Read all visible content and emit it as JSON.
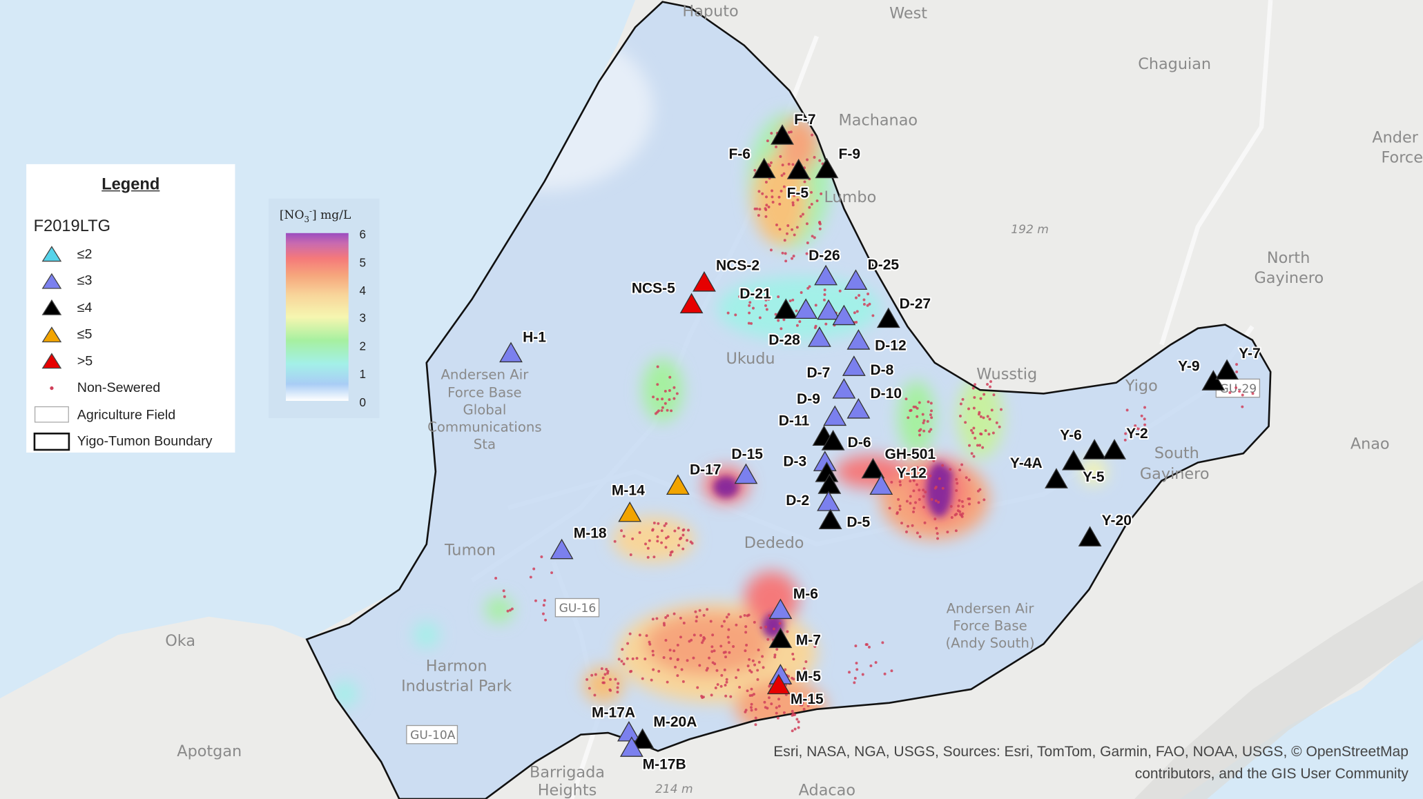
{
  "legend": {
    "title": "Legend",
    "layer": "F2019LTG",
    "items": [
      {
        "label": "≤2",
        "symbol": "triangle",
        "color": "#55d3ea"
      },
      {
        "label": "≤3",
        "symbol": "triangle",
        "color": "#7b80ee"
      },
      {
        "label": "≤4",
        "symbol": "triangle",
        "color": "#000000"
      },
      {
        "label": "≤5",
        "symbol": "triangle",
        "color": "#f2a400"
      },
      {
        "label": ">5",
        "symbol": "triangle",
        "color": "#e60000"
      },
      {
        "label": "Non-Sewered",
        "symbol": "dot",
        "color": "#d0405a"
      },
      {
        "label": "Agriculture Field",
        "symbol": "box-gray"
      },
      {
        "label": "Yigo-Tumon Boundary",
        "symbol": "box-black"
      }
    ]
  },
  "colorbar": {
    "title_prefix": "[NO",
    "title_sub": "3",
    "title_sup": "-",
    "title_suffix": "] mg/L",
    "ticks": [
      "6",
      "5",
      "4",
      "3",
      "2",
      "1",
      "0"
    ],
    "range": [
      0,
      6
    ],
    "colors": [
      "#ffffff",
      "#a9cdf5",
      "#a3f0e8",
      "#a6f0a0",
      "#f6f6b0",
      "#f8d59a",
      "#f6a57c",
      "#f5797a",
      "#9b4cc0"
    ]
  },
  "wells": [
    {
      "label": "F-7",
      "class": "≤4"
    },
    {
      "label": "F-6",
      "class": "≤4"
    },
    {
      "label": "F-5",
      "class": "≤4"
    },
    {
      "label": "F-9",
      "class": "≤4"
    },
    {
      "label": "NCS-2",
      "class": ">5"
    },
    {
      "label": "NCS-5",
      "class": ">5"
    },
    {
      "label": "D-21",
      "class": "≤4"
    },
    {
      "label": "D-26",
      "class": "≤3"
    },
    {
      "label": "D-25",
      "class": "≤3"
    },
    {
      "label": "",
      "class": "≤3"
    },
    {
      "label": "",
      "class": "≤3"
    },
    {
      "label": "",
      "class": "≤3"
    },
    {
      "label": "D-27",
      "class": "≤4"
    },
    {
      "label": "D-28",
      "class": "≤3"
    },
    {
      "label": "D-12",
      "class": "≤3"
    },
    {
      "label": "D-8",
      "class": "≤3"
    },
    {
      "label": "D-7",
      "class": "≤3"
    },
    {
      "label": "D-10",
      "class": "≤3"
    },
    {
      "label": "D-9",
      "class": "≤3"
    },
    {
      "label": "D-11",
      "class": "≤4"
    },
    {
      "label": "D-6",
      "class": "≤4"
    },
    {
      "label": "D-3",
      "class": "≤3"
    },
    {
      "label": "",
      "class": "≤4"
    },
    {
      "label": "",
      "class": "≤4"
    },
    {
      "label": "D-2",
      "class": "≤3"
    },
    {
      "label": "D-5",
      "class": "≤4"
    },
    {
      "label": "D-15",
      "class": "≤3"
    },
    {
      "label": "D-17",
      "class": ""
    },
    {
      "label": "GH-501",
      "class": "≤4"
    },
    {
      "label": "Y-12",
      "class": "≤3"
    },
    {
      "label": "M-14",
      "class": "≤5"
    },
    {
      "label": "",
      "class": "≤5"
    },
    {
      "label": "M-18",
      "class": "≤3"
    },
    {
      "label": "H-1",
      "class": "≤3"
    },
    {
      "label": "M-6",
      "class": "≤3"
    },
    {
      "label": "M-7",
      "class": "≤4"
    },
    {
      "label": "M-5",
      "class": "≤3"
    },
    {
      "label": "M-15",
      "class": ">5"
    },
    {
      "label": "M-17A",
      "class": "≤3"
    },
    {
      "label": "M-20A",
      "class": "≤4"
    },
    {
      "label": "M-17B",
      "class": "≤3"
    },
    {
      "label": "Y-9",
      "class": "≤4"
    },
    {
      "label": "Y-7",
      "class": "≤4"
    },
    {
      "label": "Y-6",
      "class": "≤4"
    },
    {
      "label": "Y-2",
      "class": "≤4"
    },
    {
      "label": "Y-4A",
      "class": "≤4"
    },
    {
      "label": "",
      "class": "≤4"
    },
    {
      "label": "Y-5",
      "class": ""
    },
    {
      "label": "Y-20",
      "class": "≤4"
    }
  ],
  "places": {
    "haputo": "Haputo",
    "west": "West",
    "machanao": "Machanao",
    "chaguian": "Chaguian",
    "ander1": "Ander",
    "ander2": "Force",
    "elev192": "192 m",
    "northgay1": "North",
    "northgay2": "Gayinero",
    "lumbo": "Lumbo",
    "ukudu": "Ukudu",
    "wusstig": "Wusstig",
    "yigo": "Yigo",
    "southgay1": "South",
    "southgay2": "Gayinero",
    "anao": "Anao",
    "afb1": "Andersen Air",
    "afb2": "Force Base",
    "afb3": "Global",
    "afb4": "Communications",
    "afb5": "Sta",
    "tumon": "Tumon",
    "dededo": "Dededo",
    "andy1": "Andersen Air",
    "andy2": "Force Base",
    "andy3": "(Andy South)",
    "oka": "Oka",
    "harmon1": "Harmon",
    "harmon2": "Industrial Park",
    "apotgan": "Apotgan",
    "barr1": "Barrigada",
    "barr2": "Heights",
    "adacao": "Adacao",
    "elev214": "214 m"
  },
  "shields": {
    "gu16": "GU-16",
    "gu10a": "GU-10A",
    "gu29": "GU-29"
  },
  "attribution": {
    "line1": "Esri, NASA, NGA, USGS, Sources: Esri, TomTom, Garmin, FAO, NOAA, USGS, © OpenStreetMap",
    "line2": "contributors, and the GIS User Community"
  }
}
